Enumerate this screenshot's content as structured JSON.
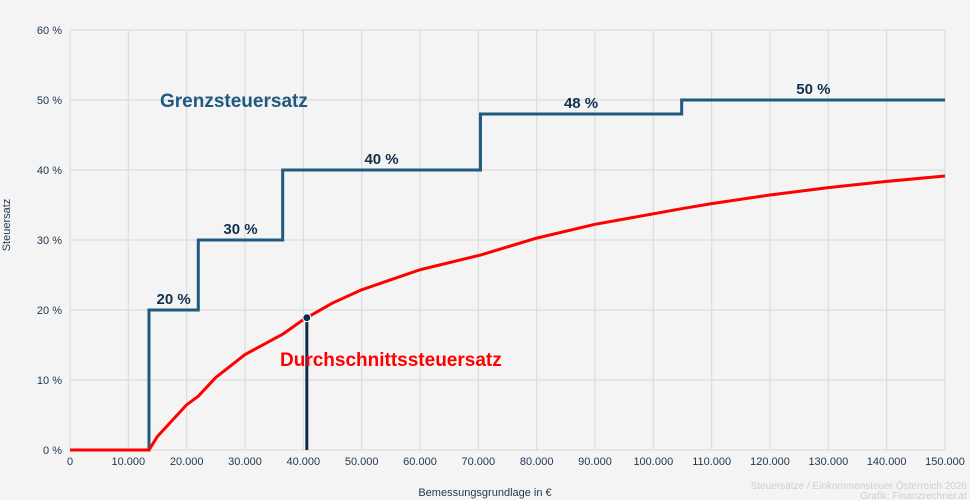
{
  "chart_data": {
    "type": "line",
    "xlabel": "Bemessungsgrundlage in €",
    "ylabel": "Steuersatz",
    "xlim": [
      0,
      150000
    ],
    "ylim": [
      0,
      60
    ],
    "grid": true,
    "x_ticks": [
      "0",
      "10.000",
      "20.000",
      "30.000",
      "40.000",
      "50.000",
      "60.000",
      "70.000",
      "80.000",
      "90.000",
      "100.000",
      "110.000",
      "120.000",
      "130.000",
      "140.000",
      "150.000"
    ],
    "y_ticks": [
      "0 %",
      "10 %",
      "20 %",
      "30 %",
      "40 %",
      "50 %",
      "60 %"
    ],
    "series": [
      {
        "name": "Grenzsteuersatz",
        "color": "#1f5a80",
        "step": true,
        "brackets": [
          {
            "from": 0,
            "to": 13539,
            "rate": 0,
            "label": ""
          },
          {
            "from": 13539,
            "to": 21992,
            "rate": 20,
            "label": "20 %"
          },
          {
            "from": 21992,
            "to": 36458,
            "rate": 30,
            "label": "30 %"
          },
          {
            "from": 36458,
            "to": 70365,
            "rate": 40,
            "label": "40 %"
          },
          {
            "from": 70365,
            "to": 104859,
            "rate": 48,
            "label": "48 %"
          },
          {
            "from": 104859,
            "to": 150000,
            "rate": 50,
            "label": "50 %"
          }
        ]
      },
      {
        "name": "Durchschnittssteuersatz",
        "color": "#ff0000",
        "x": [
          0,
          10000,
          13539,
          15000,
          20000,
          21992,
          25000,
          30000,
          36458,
          40000,
          45000,
          50000,
          60000,
          70365,
          80000,
          90000,
          104859,
          110000,
          120000,
          130000,
          140000,
          150000
        ],
        "y": [
          0,
          0,
          0,
          1.95,
          6.46,
          7.69,
          10.37,
          13.64,
          16.54,
          18.62,
          20.99,
          22.89,
          25.75,
          27.85,
          30.27,
          32.24,
          34.47,
          35.2,
          36.43,
          37.48,
          38.37,
          39.15
        ]
      }
    ],
    "marker": {
      "x": 40600,
      "y": 18.9,
      "color": "#0d2b45"
    },
    "source": [
      "Steuersätze / Einkommensteuer Österreich 2026",
      "Grafik: Finanzrechner.at"
    ]
  }
}
